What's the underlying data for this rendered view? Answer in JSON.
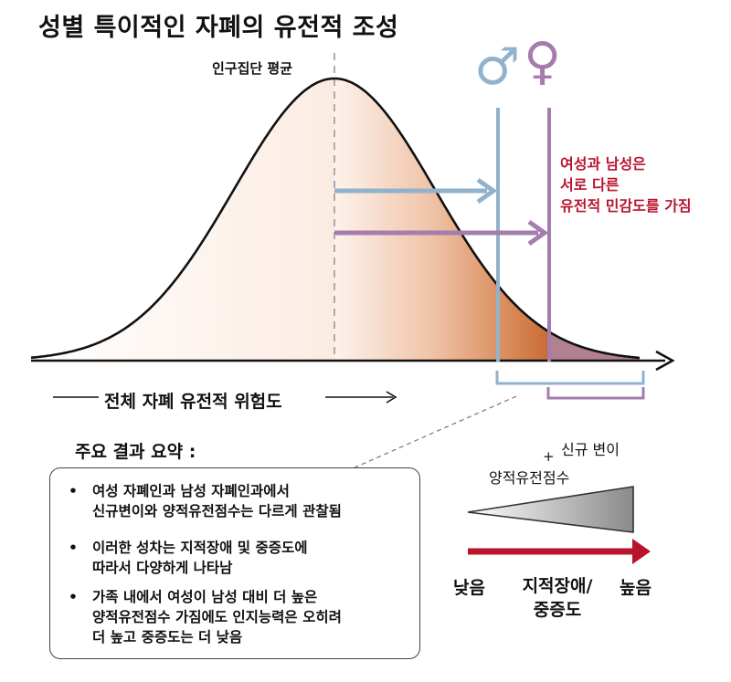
{
  "title": "성별 특이적인 자폐의 유전적 조성",
  "diagram": {
    "population_mean_label": "인구집단 평균",
    "male_symbol": "♂",
    "female_symbol": "♀",
    "callout_lines": [
      "여성과 남성은",
      "서로 다른",
      "유전적 민감도를 가짐"
    ],
    "x_axis_label": "전체 자폐 유전적 위험도",
    "colors": {
      "male": "#91b2cc",
      "female": "#a47dac",
      "callout": "#b8142c",
      "low_to_high_arrow": "#b8142c",
      "curve_fill_light": "#fdf2ec",
      "curve_fill_dark": "#c96a35"
    }
  },
  "summary": {
    "title": "주요 결과 요약 :",
    "bullets": [
      {
        "marker": "•",
        "lines": [
          "여성 자폐인과 남성 자폐인과에서",
          "신규변이와 양적유전점수는 다르게 관찰됨"
        ]
      },
      {
        "marker": "•",
        "lines": [
          "이러한 성차는 지적장애 및 중증도에",
          "따라서 다양하게 나타남"
        ]
      },
      {
        "marker": "•",
        "lines": [
          "가족 내에서 여성이 남성 대비 더 높은",
          "양적유전점수 가짐에도 인지능력은 오히려",
          "더 높고 중증도는 더 낮음"
        ]
      }
    ]
  },
  "legend": {
    "denovo_label": "신규 변이",
    "plus": "+",
    "pgs_label": "양적유전점수",
    "low_label": "낮음",
    "mid_label_lines": [
      "지적장애/",
      "중증도"
    ],
    "high_label": "높음"
  }
}
